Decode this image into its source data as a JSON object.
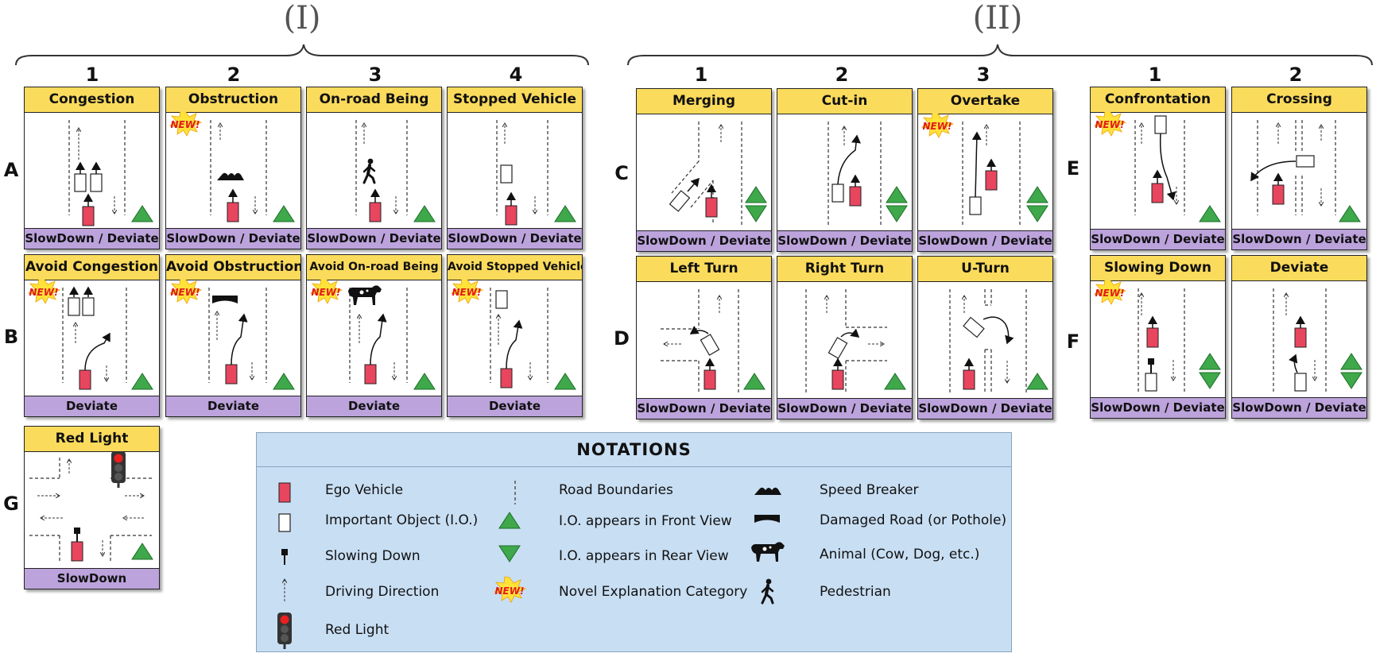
{
  "groups": [
    {
      "label": "(I)",
      "columns": [
        "1",
        "2",
        "3",
        "4"
      ]
    },
    {
      "label": "(II)",
      "columns": [
        "1",
        "2",
        "3"
      ],
      "columns_right": [
        "1",
        "2"
      ]
    }
  ],
  "rows": [
    "A",
    "B",
    "C",
    "D",
    "E",
    "F",
    "G"
  ],
  "cards": {
    "A1": {
      "title": "Congestion",
      "footer": "SlowDown / Deviate"
    },
    "A2": {
      "title": "Obstruction",
      "footer": "SlowDown / Deviate"
    },
    "A3": {
      "title": "On-road Being",
      "footer": "SlowDown / Deviate"
    },
    "A4": {
      "title": "Stopped Vehicle",
      "footer": "SlowDown / Deviate"
    },
    "B1": {
      "title": "Avoid Congestion",
      "footer": "Deviate"
    },
    "B2": {
      "title": "Avoid Obstruction",
      "footer": "Deviate"
    },
    "B3": {
      "title": "Avoid On-road Being",
      "footer": "Deviate"
    },
    "B4": {
      "title": "Avoid Stopped Vehicle",
      "footer": "Deviate"
    },
    "C1": {
      "title": "Merging",
      "footer": "SlowDown / Deviate"
    },
    "C2": {
      "title": "Cut-in",
      "footer": "SlowDown / Deviate"
    },
    "C3": {
      "title": "Overtake",
      "footer": "SlowDown / Deviate"
    },
    "D1": {
      "title": "Left Turn",
      "footer": "SlowDown / Deviate"
    },
    "D2": {
      "title": "Right Turn",
      "footer": "SlowDown / Deviate"
    },
    "D3": {
      "title": "U-Turn",
      "footer": "SlowDown / Deviate"
    },
    "E1": {
      "title": "Confrontation",
      "footer": "SlowDown / Deviate"
    },
    "E2": {
      "title": "Crossing",
      "footer": "SlowDown / Deviate"
    },
    "F1": {
      "title": "Slowing Down",
      "footer": "SlowDown / Deviate"
    },
    "F2": {
      "title": "Deviate",
      "footer": "SlowDown / Deviate"
    },
    "G1": {
      "title": "Red Light",
      "footer": "SlowDown"
    }
  },
  "new_badge": "NEW!",
  "notations": {
    "title": "NOTATIONS",
    "items": [
      {
        "icon": "ego-vehicle-icon",
        "label": "Ego Vehicle"
      },
      {
        "icon": "important-object-icon",
        "label": "Important Object (I.O.)"
      },
      {
        "icon": "slowing-down-icon",
        "label": "Slowing Down"
      },
      {
        "icon": "driving-direction-icon",
        "label": "Driving Direction"
      },
      {
        "icon": "red-light-icon",
        "label": "Red Light"
      },
      {
        "icon": "road-boundaries-icon",
        "label": "Road Boundaries"
      },
      {
        "icon": "front-view-triangle-icon",
        "label": "I.O. appears in Front View"
      },
      {
        "icon": "rear-view-triangle-icon",
        "label": "I.O. appears in Rear View"
      },
      {
        "icon": "new-badge-icon",
        "label": "Novel Explanation Category"
      },
      {
        "icon": "speed-breaker-icon",
        "label": "Speed Breaker"
      },
      {
        "icon": "damaged-road-icon",
        "label": "Damaged Road (or Pothole)"
      },
      {
        "icon": "animal-icon",
        "label": "Animal (Cow, Dog, etc.)"
      },
      {
        "icon": "pedestrian-icon",
        "label": "Pedestrian"
      }
    ]
  },
  "colors": {
    "title_bar": "#fbdb5c",
    "footer_bar": "#bca3dc",
    "ego_vehicle": "#e8455f",
    "triangle": "#3ea84a",
    "notations_bg": "#c8def3"
  }
}
